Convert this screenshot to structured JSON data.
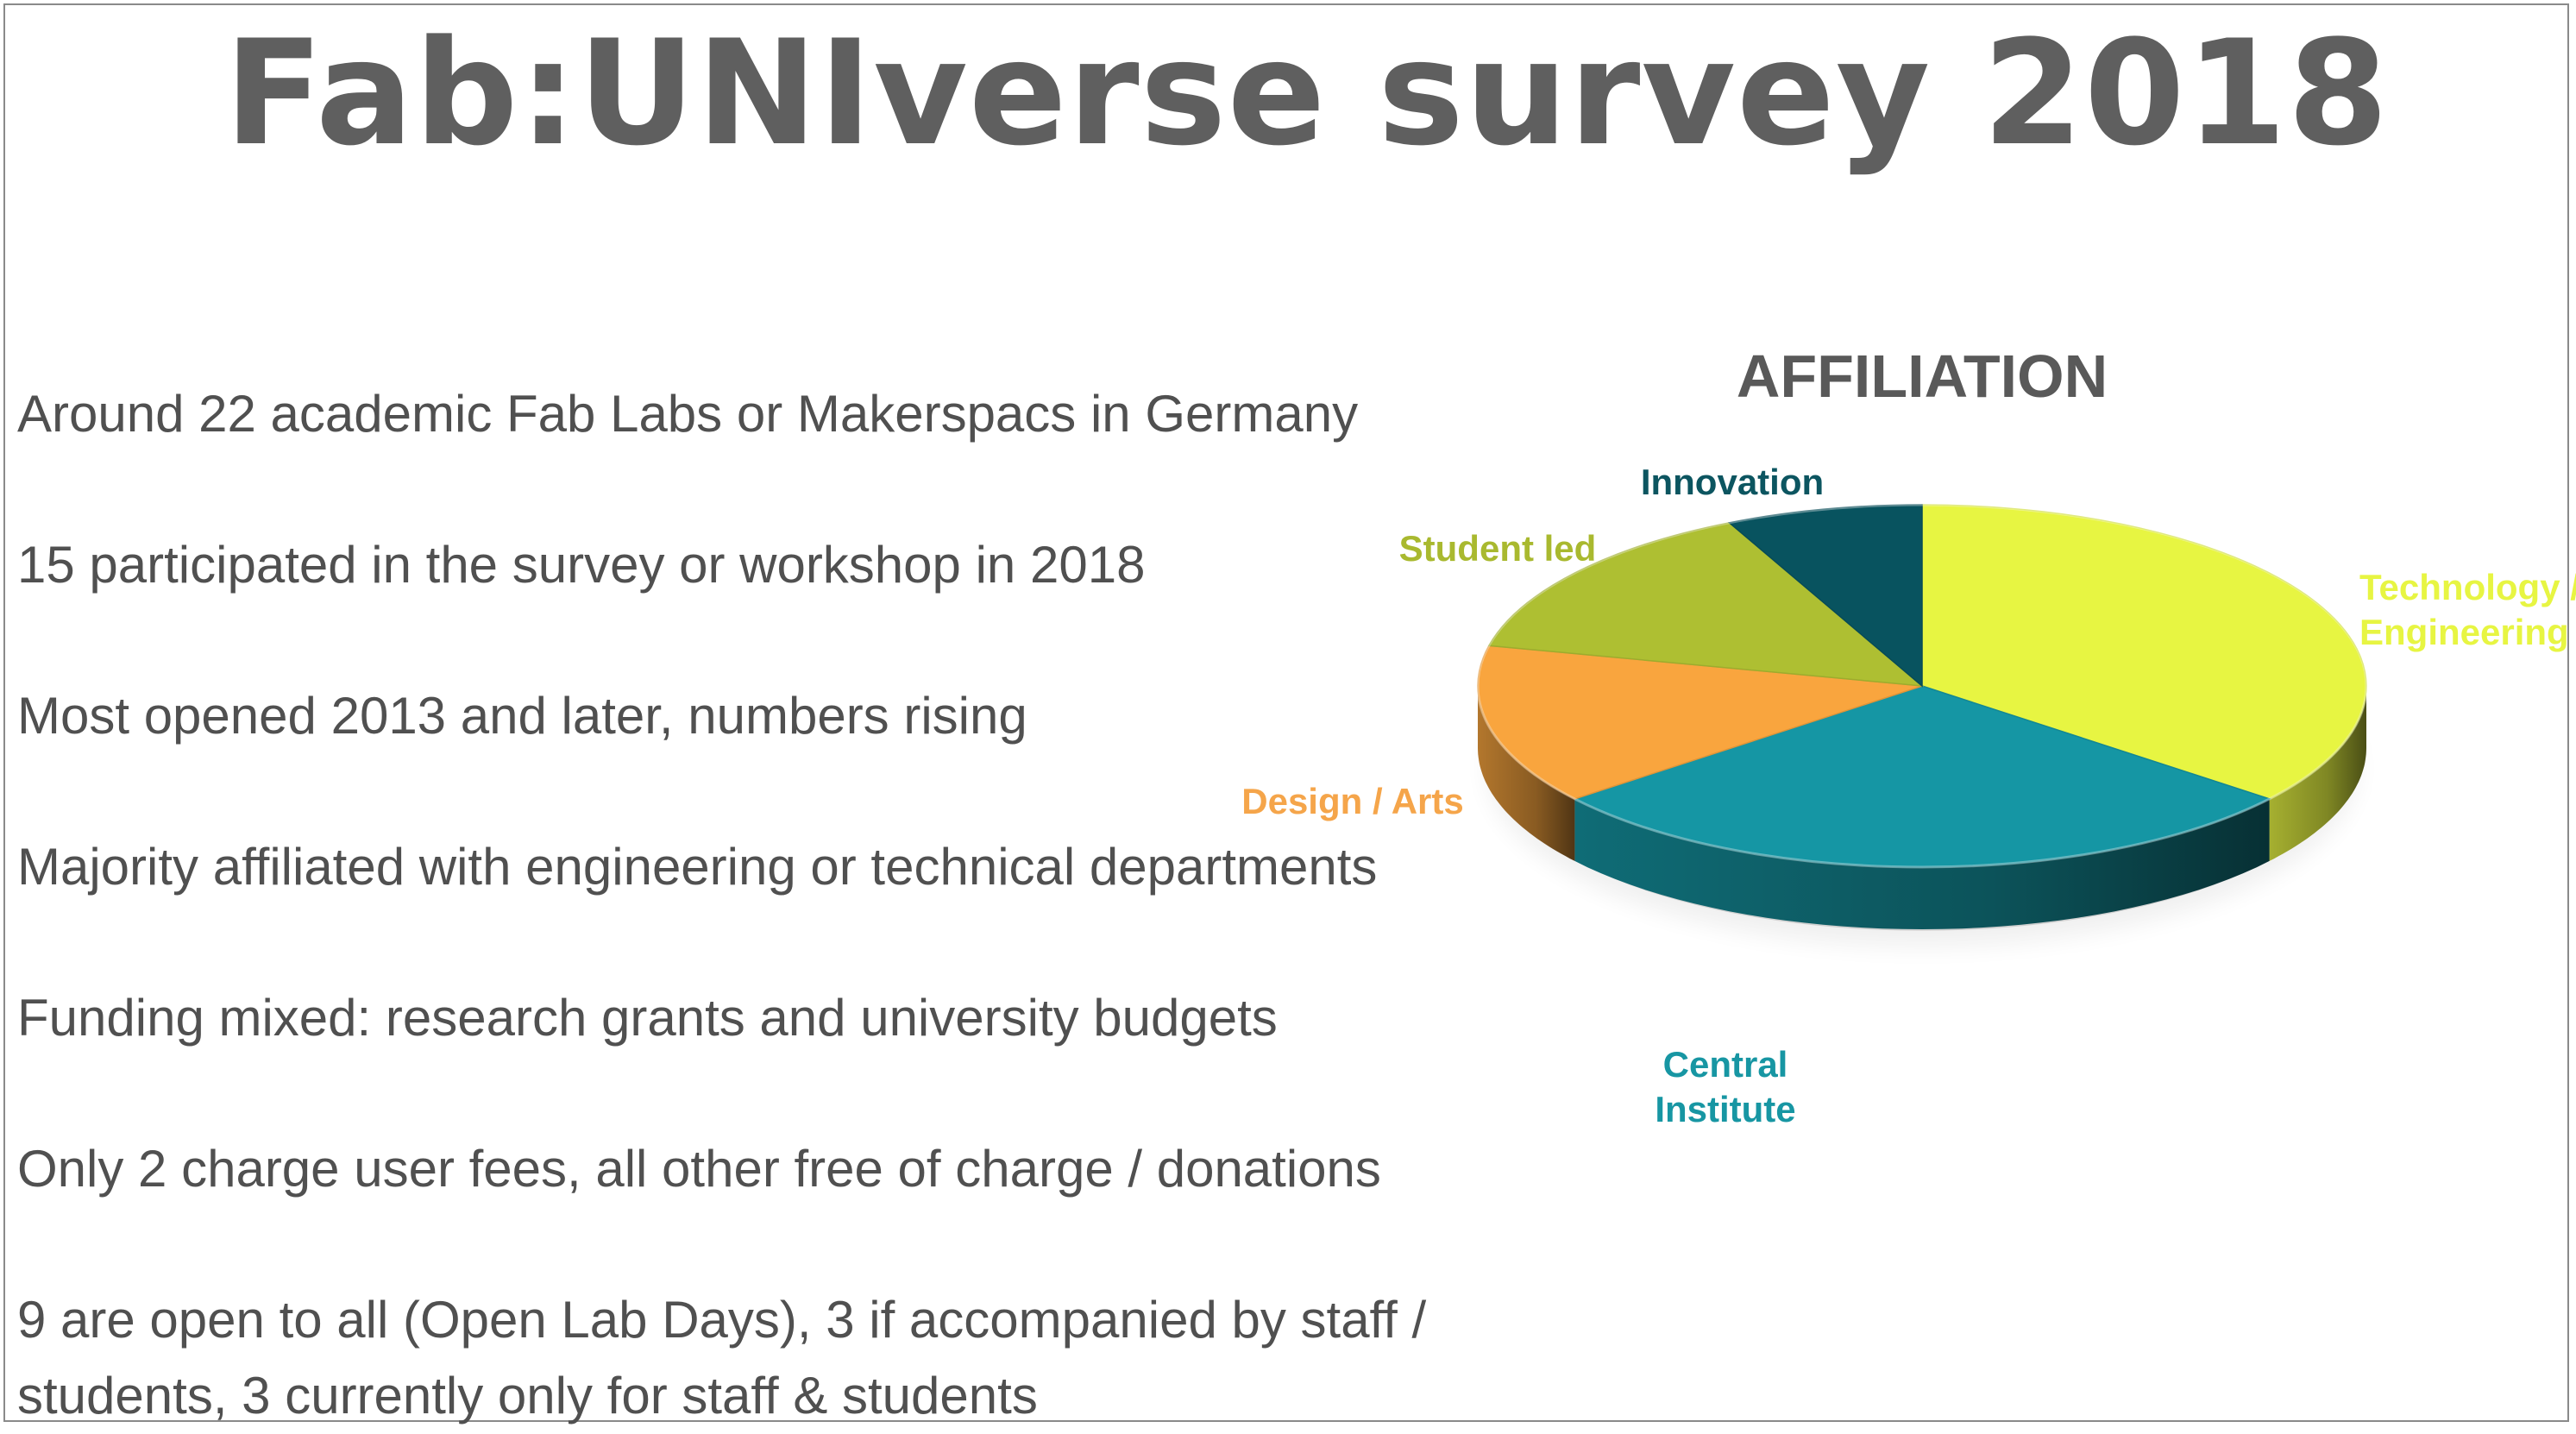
{
  "slide": {
    "title": "Fab:UNIverse survey 2018",
    "bullets": [
      "Around 22 academic Fab Labs or Makerspacs in Germany",
      "15 participated in the survey or workshop in 2018",
      "Most opened 2013 and later, numbers rising",
      "Majority affiliated with engineering or technical departments",
      "Funding mixed: research grants and university budgets",
      "Only 2 charge user fees, all other free of charge / donations",
      "9 are open to all (Open Lab Days), 3 if accompanied by staff / students, 3 currently only for staff & students"
    ],
    "text_color": "#505050",
    "title_color": "#5f5f5f"
  },
  "chart_data": {
    "type": "pie",
    "style": "3d-exploded-none",
    "title": "AFFILIATION",
    "legend": "none",
    "labels_placement": "outside",
    "slices": [
      {
        "label": "Technology / Engineering",
        "display_label": [
          "Technology /",
          "Engineering"
        ],
        "value": 5,
        "color": "#e7f542",
        "label_color": "#e7f542"
      },
      {
        "label": "Central Institute",
        "display_label": [
          "Central",
          "Institute"
        ],
        "value": 4,
        "color": "#1596a4",
        "label_color": "#1796a3"
      },
      {
        "label": "Design / Arts",
        "display_label": [
          "Design / Arts"
        ],
        "value": 2,
        "color": "#f9a53e",
        "label_color": "#f5a54a"
      },
      {
        "label": "Student led",
        "display_label": [
          "Student led"
        ],
        "value": 2,
        "color": "#aebf32",
        "label_color": "#a9b92f"
      },
      {
        "label": "Innovation",
        "display_label": [
          "Innovation"
        ],
        "value": 1,
        "color": "#08535f",
        "label_color": "#0c5560"
      }
    ]
  }
}
